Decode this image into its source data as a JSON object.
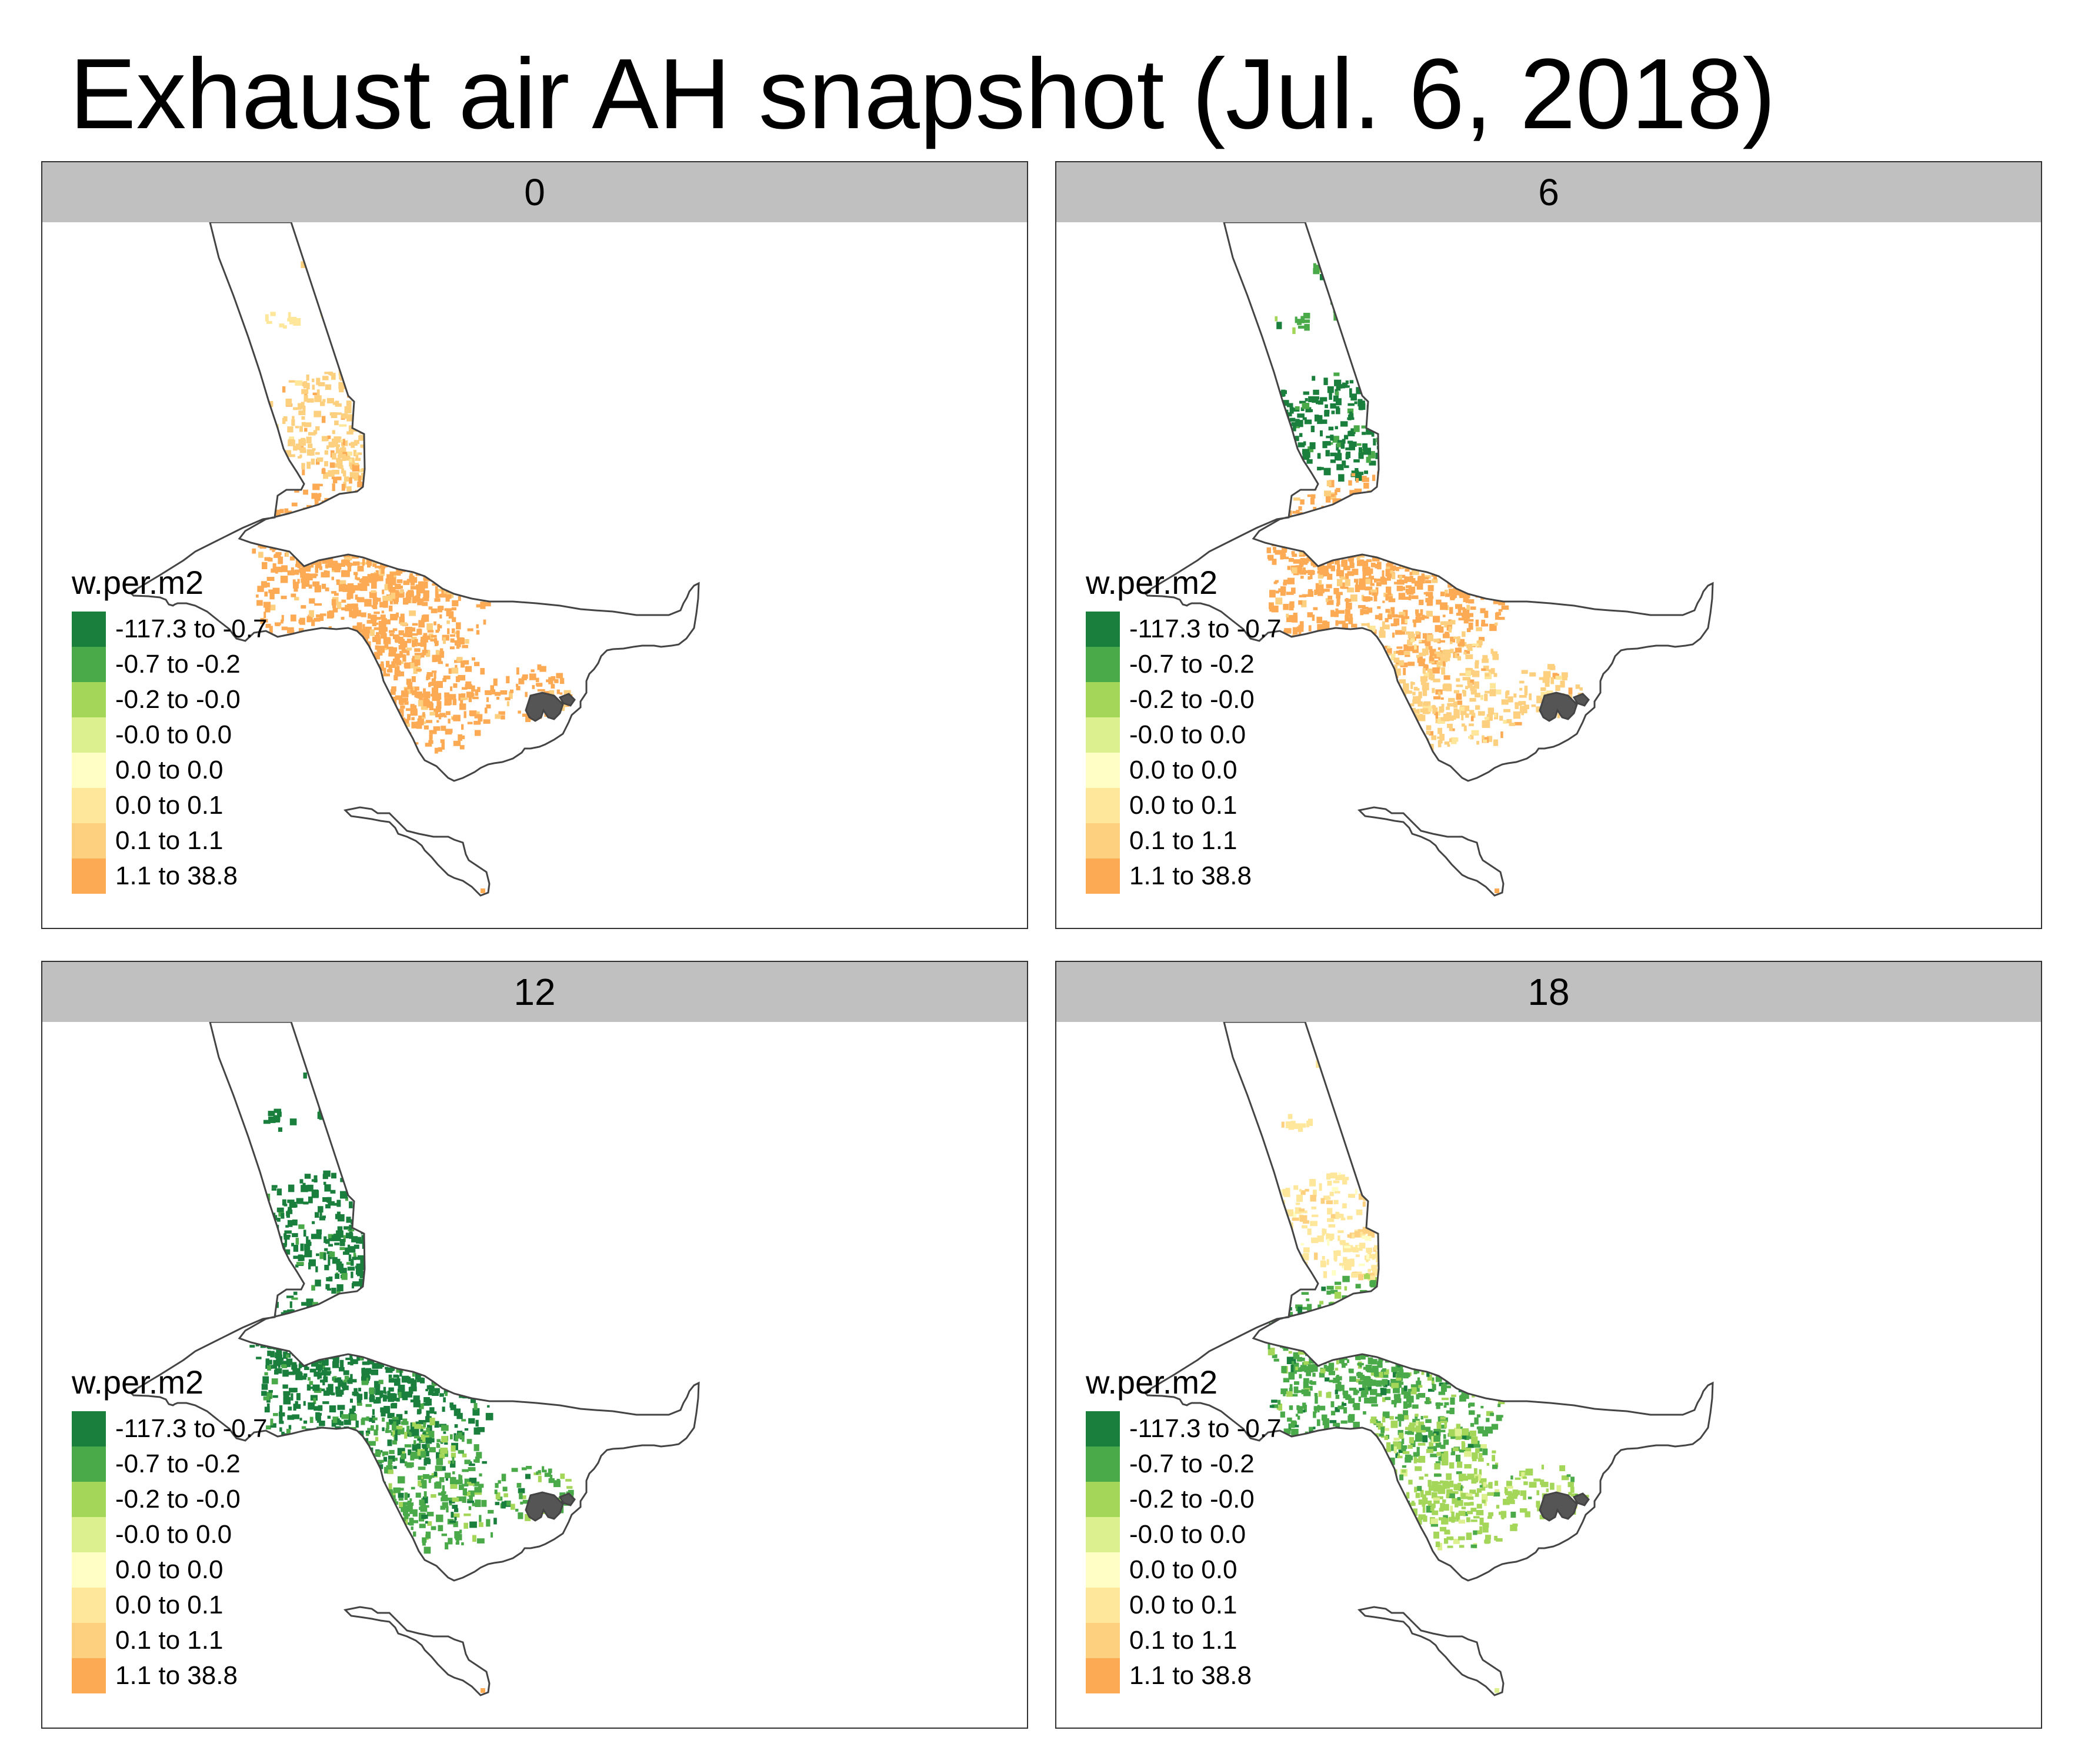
{
  "title": "Exhaust air AH snapshot (Jul. 6, 2018)",
  "legend": {
    "title": "w.per.m2",
    "classes": [
      {
        "label": "-117.3 to -0.7",
        "color": "#1a7f3c"
      },
      {
        "label": "-0.7 to -0.2",
        "color": "#4aaa4a"
      },
      {
        "label": "-0.2 to -0.0",
        "color": "#a4d65a"
      },
      {
        "label": "-0.0 to 0.0",
        "color": "#ddf08f"
      },
      {
        "label": "0.0 to 0.0",
        "color": "#fffec4"
      },
      {
        "label": "0.0 to 0.1",
        "color": "#fee79b"
      },
      {
        "label": "0.1 to 1.1",
        "color": "#fdd07f"
      },
      {
        "label": "1.1 to 38.8",
        "color": "#fdaa55"
      }
    ]
  },
  "panels": [
    {
      "label": "0",
      "zones": {
        "north": 5,
        "valley": 6,
        "central": 7,
        "south": 7,
        "west": 6
      }
    },
    {
      "label": "6",
      "zones": {
        "north": 1,
        "valley": 0,
        "central": 7,
        "south": 6,
        "west": 5
      }
    },
    {
      "label": "12",
      "zones": {
        "north": 0,
        "valley": 0,
        "central": 0,
        "south": 1,
        "west": 6
      }
    },
    {
      "label": "18",
      "zones": {
        "north": 5,
        "valley": 5,
        "central": 1,
        "south": 2,
        "west": 5
      }
    }
  ]
}
